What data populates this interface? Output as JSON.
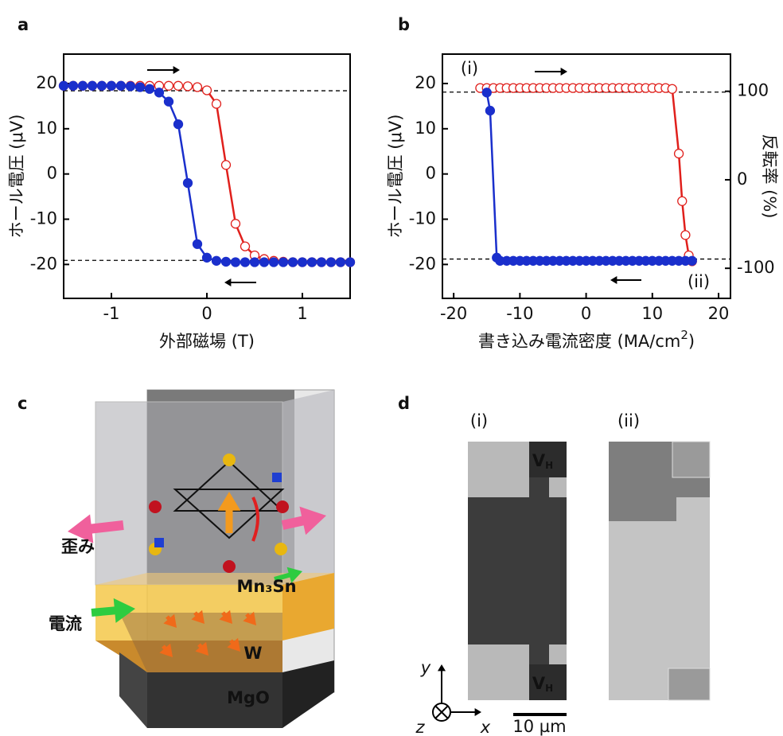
{
  "chart_data": [
    {
      "type": "line",
      "panel": "a",
      "x_label": "外部磁場 (T)",
      "y_label": "ホール電圧 (μV)",
      "xlim": [
        -1.5,
        1.5
      ],
      "xticks": [
        -1,
        0,
        1
      ],
      "ylim": [
        -27.5,
        26.5
      ],
      "yticks": [
        -20,
        -10,
        0,
        10,
        20
      ],
      "reference_lines": [
        18.4,
        -19.1
      ],
      "x": [
        -1.5,
        -1.4,
        -1.3,
        -1.2,
        -1.1,
        -1.0,
        -0.9,
        -0.8,
        -0.7,
        -0.6,
        -0.5,
        -0.4,
        -0.3,
        -0.2,
        -0.1,
        0,
        0.1,
        0.2,
        0.3,
        0.4,
        0.5,
        0.6,
        0.7,
        0.8,
        0.9,
        1.0,
        1.1,
        1.2,
        1.3,
        1.4,
        1.5
      ],
      "series": [
        {
          "color": "#e0201c",
          "marker": "open",
          "values": [
            19.5,
            19.5,
            19.5,
            19.5,
            19.5,
            19.5,
            19.5,
            19.5,
            19.5,
            19.5,
            19.5,
            19.5,
            19.5,
            19.4,
            19.2,
            18.5,
            15.5,
            2,
            -11,
            -16,
            -18,
            -18.8,
            -19.2,
            -19.4,
            -19.5,
            -19.5,
            -19.5,
            -19.5,
            -19.5,
            -19.5,
            -19.5
          ]
        },
        {
          "color": "#1a2fcc",
          "marker": "filled",
          "values": [
            19.5,
            19.5,
            19.5,
            19.5,
            19.5,
            19.5,
            19.5,
            19.4,
            19.2,
            18.8,
            18,
            16,
            11,
            -2,
            -15.5,
            -18.5,
            -19.2,
            -19.4,
            -19.5,
            -19.5,
            -19.5,
            -19.5,
            -19.5,
            -19.5,
            -19.5,
            -19.5,
            -19.5,
            -19.5,
            -19.5,
            -19.5,
            -19.5
          ]
        }
      ]
    },
    {
      "type": "line",
      "panel": "b",
      "x_label": [
        "書き込み電流密度 (MA/cm",
        "2",
        ")"
      ],
      "y_label": "ホール電圧 (μV)",
      "y2_label": "反転率 (%)",
      "xlim": [
        -21.7,
        21.8
      ],
      "xticks": [
        -20,
        -10,
        0,
        10,
        20
      ],
      "ylim": [
        -27.5,
        26.5
      ],
      "yticks": [
        -20,
        -10,
        0,
        10,
        20
      ],
      "y2lim": [
        -134,
        142
      ],
      "y2ticks": [
        -100,
        0,
        100
      ],
      "reference_lines": [
        18.1,
        -18.8
      ],
      "annotations": [
        "(i)",
        "(ii)"
      ],
      "series": [
        {
          "color": "#e0201c",
          "marker": "open",
          "x": [
            -16,
            -15,
            -14,
            -13,
            -12,
            -11,
            -10,
            -9,
            -8,
            -7,
            -6,
            -5,
            -4,
            -3,
            -2,
            -1,
            0,
            1,
            2,
            3,
            4,
            5,
            6,
            7,
            8,
            9,
            10,
            11,
            12,
            13,
            14,
            14.5,
            15,
            15.5,
            16
          ],
          "values": [
            19,
            19,
            19,
            19,
            19,
            19,
            19,
            19,
            19,
            19,
            19,
            19,
            19,
            19,
            19,
            19,
            19,
            19,
            19,
            19,
            19,
            19,
            19,
            19,
            19,
            19,
            19,
            19,
            19,
            18.8,
            4.5,
            -6,
            -13.5,
            -18,
            -19.3
          ]
        },
        {
          "color": "#1a2fcc",
          "marker": "filled",
          "x": [
            16,
            15,
            14,
            13,
            12,
            11,
            10,
            9,
            8,
            7,
            6,
            5,
            4,
            3,
            2,
            1,
            0,
            -1,
            -2,
            -3,
            -4,
            -5,
            -6,
            -7,
            -8,
            -9,
            -10,
            -11,
            -12,
            -13,
            -13.5,
            -14.5,
            -15
          ],
          "values": [
            -19.2,
            -19.2,
            -19.2,
            -19.2,
            -19.2,
            -19.2,
            -19.2,
            -19.2,
            -19.2,
            -19.2,
            -19.2,
            -19.2,
            -19.2,
            -19.2,
            -19.2,
            -19.2,
            -19.2,
            -19.2,
            -19.2,
            -19.2,
            -19.2,
            -19.2,
            -19.2,
            -19.2,
            -19.2,
            -19.2,
            -19.2,
            -19.2,
            -19.2,
            -19.2,
            -18.5,
            14,
            18
          ]
        }
      ]
    }
  ],
  "figure": {
    "panel_labels": [
      "a",
      "b",
      "c",
      "d"
    ],
    "c": {
      "strain": "歪み",
      "current": "電流",
      "layer_top": "Mn₃Sn",
      "layer_mid": "W",
      "layer_bottom": "MgO"
    },
    "d": {
      "image_labels": [
        "(i)",
        "(ii)"
      ],
      "probe": {
        "main": "V",
        "sub": "H"
      },
      "axes": [
        "y",
        "x",
        "z"
      ],
      "scale": "10 µm"
    }
  }
}
